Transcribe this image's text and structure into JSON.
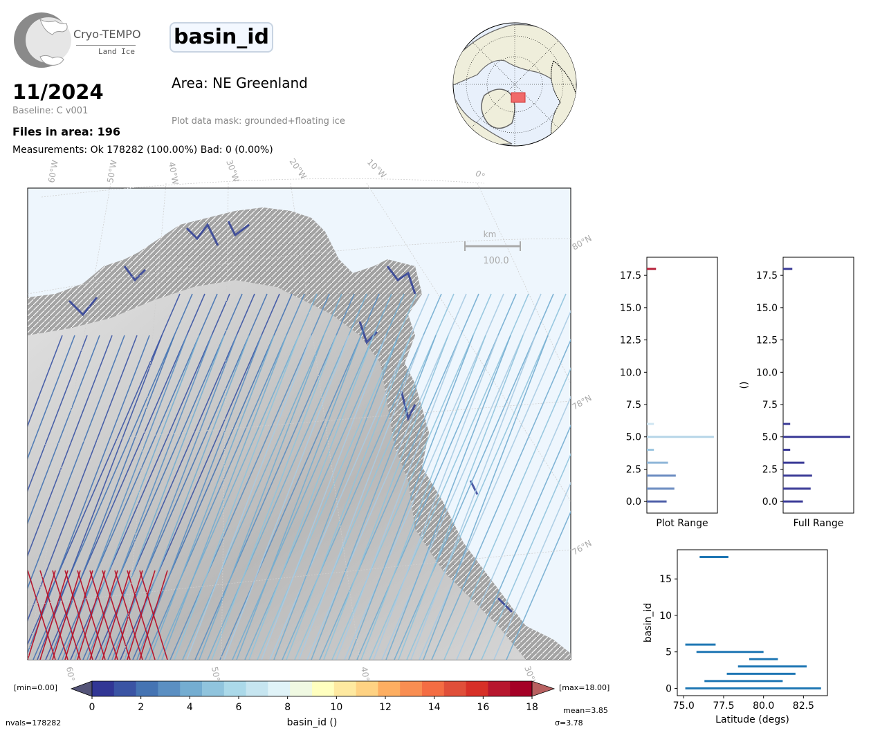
{
  "logo": {
    "name": "Cryo-TEMPO",
    "subtitle": "Land Ice"
  },
  "header": {
    "title": "basin_id",
    "date": "11/2024",
    "baseline": "Baseline: C v001",
    "files": "Files in area: 196",
    "measurements": "Measurements: Ok 178282 (100.00%) Bad: 0 (0.00%)",
    "area": "Area: NE Greenland",
    "mask": "Plot data mask: grounded+floating ice"
  },
  "map": {
    "lon_labels": [
      "60°W",
      "50°W",
      "40°W",
      "30°W",
      "20°W",
      "10°W",
      "0°"
    ],
    "lat_labels": [
      "80°N",
      "78°N",
      "76°N"
    ],
    "bottom_lon_labels": [
      "60°W",
      "50°W",
      "40°W",
      "30°W"
    ],
    "scale_unit": "km",
    "scale_value": "100.0",
    "colors": {
      "ocean": "#eef6fd",
      "ice": "#d6d6d6",
      "rock": "#7a7a7a"
    }
  },
  "colorbar": {
    "min_label": "[min=0.00]",
    "max_label": "[max=18.00]",
    "ticks": [
      "0",
      "2",
      "4",
      "6",
      "8",
      "10",
      "12",
      "14",
      "16",
      "18"
    ],
    "label": "basin_id ()",
    "mean": "mean=3.85",
    "sigma": "σ=3.78",
    "nvals": "nvals=178282",
    "colors": [
      "#313695",
      "#3a54a4",
      "#4574b3",
      "#5b8fc2",
      "#74add1",
      "#90c4dd",
      "#abd9e9",
      "#c6e5f0",
      "#e0f3f8",
      "#f0f9e2",
      "#ffffbf",
      "#fee9a0",
      "#fed283",
      "#fdae61",
      "#f98e52",
      "#f46d43",
      "#e04f39",
      "#d73027",
      "#b7172e",
      "#a50026"
    ]
  },
  "chart_data": [
    {
      "type": "bar",
      "orientation": "horizontal",
      "xlabel": "Plot Range",
      "ylabel": "",
      "ylim": [
        -0.9,
        18.9
      ],
      "yticks": [
        "0.0",
        "2.5",
        "5.0",
        "7.5",
        "10.0",
        "12.5",
        "15.0",
        "17.5"
      ],
      "bars": [
        {
          "y": 0,
          "value": 0.28,
          "color": "#4d5ea8"
        },
        {
          "y": 1,
          "value": 0.39,
          "color": "#6a8bc0"
        },
        {
          "y": 2,
          "value": 0.41,
          "color": "#6a8bc0"
        },
        {
          "y": 3,
          "value": 0.3,
          "color": "#8fb6d8"
        },
        {
          "y": 4,
          "value": 0.1,
          "color": "#9ec6e0"
        },
        {
          "y": 5,
          "value": 0.95,
          "color": "#b7d6e8"
        },
        {
          "y": 6,
          "value": 0.1,
          "color": "#d0e6f2"
        },
        {
          "y": 18,
          "value": 0.13,
          "color": "#b7213a"
        }
      ]
    },
    {
      "type": "bar",
      "orientation": "horizontal",
      "xlabel": "Full Range",
      "ylabel": "()",
      "ylim": [
        -0.9,
        18.9
      ],
      "yticks": [
        "0.0",
        "2.5",
        "5.0",
        "7.5",
        "10.0",
        "12.5",
        "15.0",
        "17.5"
      ],
      "bars": [
        {
          "y": 0,
          "value": 0.28,
          "color": "#3a3a96"
        },
        {
          "y": 1,
          "value": 0.39,
          "color": "#3a3a96"
        },
        {
          "y": 2,
          "value": 0.41,
          "color": "#3a3a96"
        },
        {
          "y": 3,
          "value": 0.3,
          "color": "#3a3a96"
        },
        {
          "y": 4,
          "value": 0.1,
          "color": "#3a3a96"
        },
        {
          "y": 5,
          "value": 0.95,
          "color": "#3a3a96"
        },
        {
          "y": 6,
          "value": 0.1,
          "color": "#3a3a96"
        },
        {
          "y": 18,
          "value": 0.13,
          "color": "#3a3a96"
        }
      ]
    },
    {
      "type": "scatter",
      "xlabel": "Latitude (degs)",
      "ylabel": "basin_id",
      "xlim": [
        74.6,
        84.0
      ],
      "ylim": [
        -1,
        19
      ],
      "xticks": [
        75.0,
        77.5,
        80.0,
        82.5
      ],
      "xtick_labels": [
        "75.0",
        "77.5",
        "80.0",
        "82.5"
      ],
      "yticks": [
        0,
        5,
        10,
        15
      ],
      "ytick_labels": [
        "0",
        "5",
        "10",
        "15"
      ],
      "color": "#1f77b4",
      "segments": [
        {
          "y": 18,
          "x": [
            76.0,
            77.8
          ]
        },
        {
          "y": 6,
          "x": [
            75.1,
            77.0
          ]
        },
        {
          "y": 5,
          "x": [
            75.8,
            80.0
          ]
        },
        {
          "y": 4,
          "x": [
            79.1,
            80.9
          ]
        },
        {
          "y": 3,
          "x": [
            78.4,
            82.7
          ]
        },
        {
          "y": 2,
          "x": [
            77.7,
            82.0
          ]
        },
        {
          "y": 1,
          "x": [
            76.3,
            81.2
          ]
        },
        {
          "y": 0,
          "x": [
            75.1,
            83.6
          ]
        }
      ]
    }
  ]
}
